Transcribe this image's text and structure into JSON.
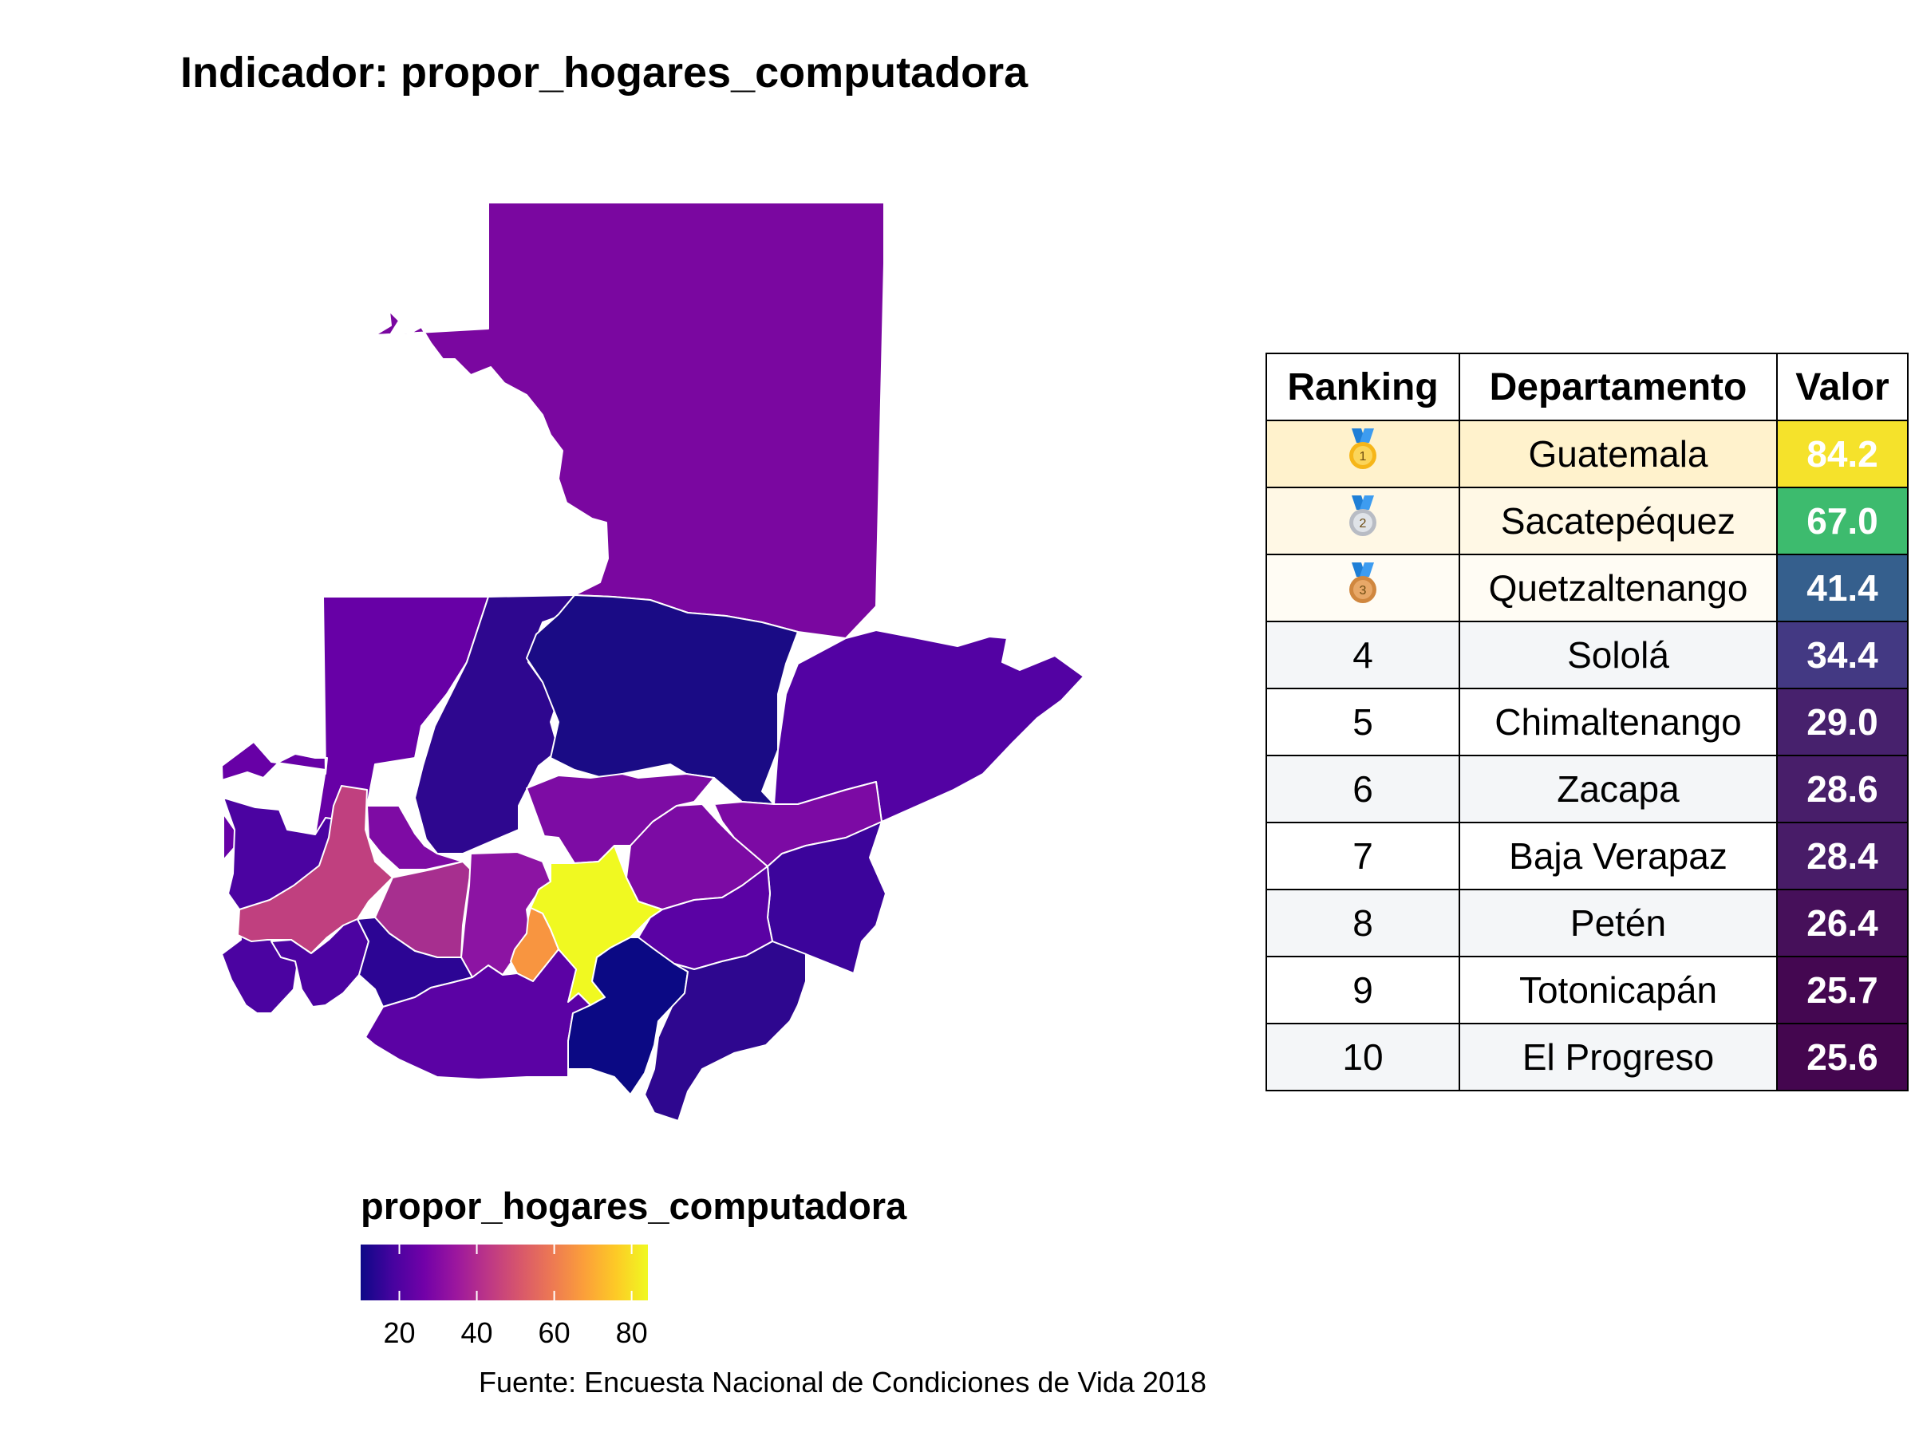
{
  "title": "Indicador: propor_hogares_computadora",
  "legend": {
    "title": "propor_hogares_computadora",
    "ticks": [
      "20",
      "40",
      "60",
      "80"
    ],
    "tick_values": [
      20,
      40,
      60,
      80
    ],
    "min": 10,
    "max": 84.2,
    "colors": [
      "#0d0887",
      "#46039f",
      "#7201a8",
      "#9c179e",
      "#bd3786",
      "#d8576b",
      "#ed7953",
      "#fb9f3a",
      "#fdca26",
      "#f0f921"
    ]
  },
  "source": "Fuente: Encuesta Nacional de Condiciones de Vida 2018",
  "table": {
    "headers": {
      "rank": "Ranking",
      "dept": "Departamento",
      "value": "Valor"
    },
    "rows": [
      {
        "rank": "",
        "medal": "gold-medal-icon",
        "dept": "Guatemala",
        "value": "84.2",
        "row_color": "#fff2cc",
        "value_color": "#f5e22b",
        "value_text_color": "#ffffff"
      },
      {
        "rank": "",
        "medal": "silver-medal-icon",
        "dept": "Sacatepéquez",
        "value": "67.0",
        "row_color": "#fff8e5",
        "value_color": "#3dbb6e",
        "value_text_color": "#ffffff"
      },
      {
        "rank": "",
        "medal": "bronze-medal-icon",
        "dept": "Quetzaltenango",
        "value": "41.4",
        "row_color": "#fffcf4",
        "value_color": "#355f8d",
        "value_text_color": "#ffffff"
      },
      {
        "rank": "4",
        "dept": "Sololá",
        "value": "34.4",
        "row_color": "#f4f6f8",
        "value_color": "#433983",
        "value_text_color": "#ffffff"
      },
      {
        "rank": "5",
        "dept": "Chimaltenango",
        "value": "29.0",
        "row_color": "#ffffff",
        "value_color": "#47216d",
        "value_text_color": "#ffffff"
      },
      {
        "rank": "6",
        "dept": "Zacapa",
        "value": "28.6",
        "row_color": "#f4f6f8",
        "value_color": "#481e6a",
        "value_text_color": "#ffffff"
      },
      {
        "rank": "7",
        "dept": "Baja Verapaz",
        "value": "28.4",
        "row_color": "#ffffff",
        "value_color": "#481c68",
        "value_text_color": "#ffffff"
      },
      {
        "rank": "8",
        "dept": "Petén",
        "value": "26.4",
        "row_color": "#f4f6f8",
        "value_color": "#46105a",
        "value_text_color": "#ffffff"
      },
      {
        "rank": "9",
        "dept": "Totonicapán",
        "value": "25.7",
        "row_color": "#ffffff",
        "value_color": "#440751",
        "value_text_color": "#ffffff"
      },
      {
        "rank": "10",
        "dept": "El Progreso",
        "value": "25.6",
        "row_color": "#f4f6f8",
        "value_color": "#44064f",
        "value_text_color": "#ffffff"
      }
    ]
  },
  "map_colors": {
    "peten": "#7a07a0",
    "huehuetenango": "#6700a6",
    "quiche": "#2e078f",
    "alta_verapaz": "#1a0b85",
    "izabal": "#5302a3",
    "san_marcos": "#4b03a1",
    "quetzaltenango": "#c0407f",
    "totonicapan": "#7e0ba4",
    "solola": "#a72f8f",
    "chimaltenango": "#8c14a3",
    "baja_verapaz": "#7d0ca4",
    "el_progreso": "#7c0ba4",
    "zacapa": "#7c0aa4",
    "chiquimula": "#3c049b",
    "jalapa": "#5a02a4",
    "guatemala": "#f0f921",
    "sacatepequez": "#f89540",
    "retalhuleu": "#4c03a1",
    "suchitepequez": "#2c0594",
    "escuintla": "#5b02a4",
    "santa_rosa": "#0b0984",
    "jutiapa": "#2e078f"
  }
}
